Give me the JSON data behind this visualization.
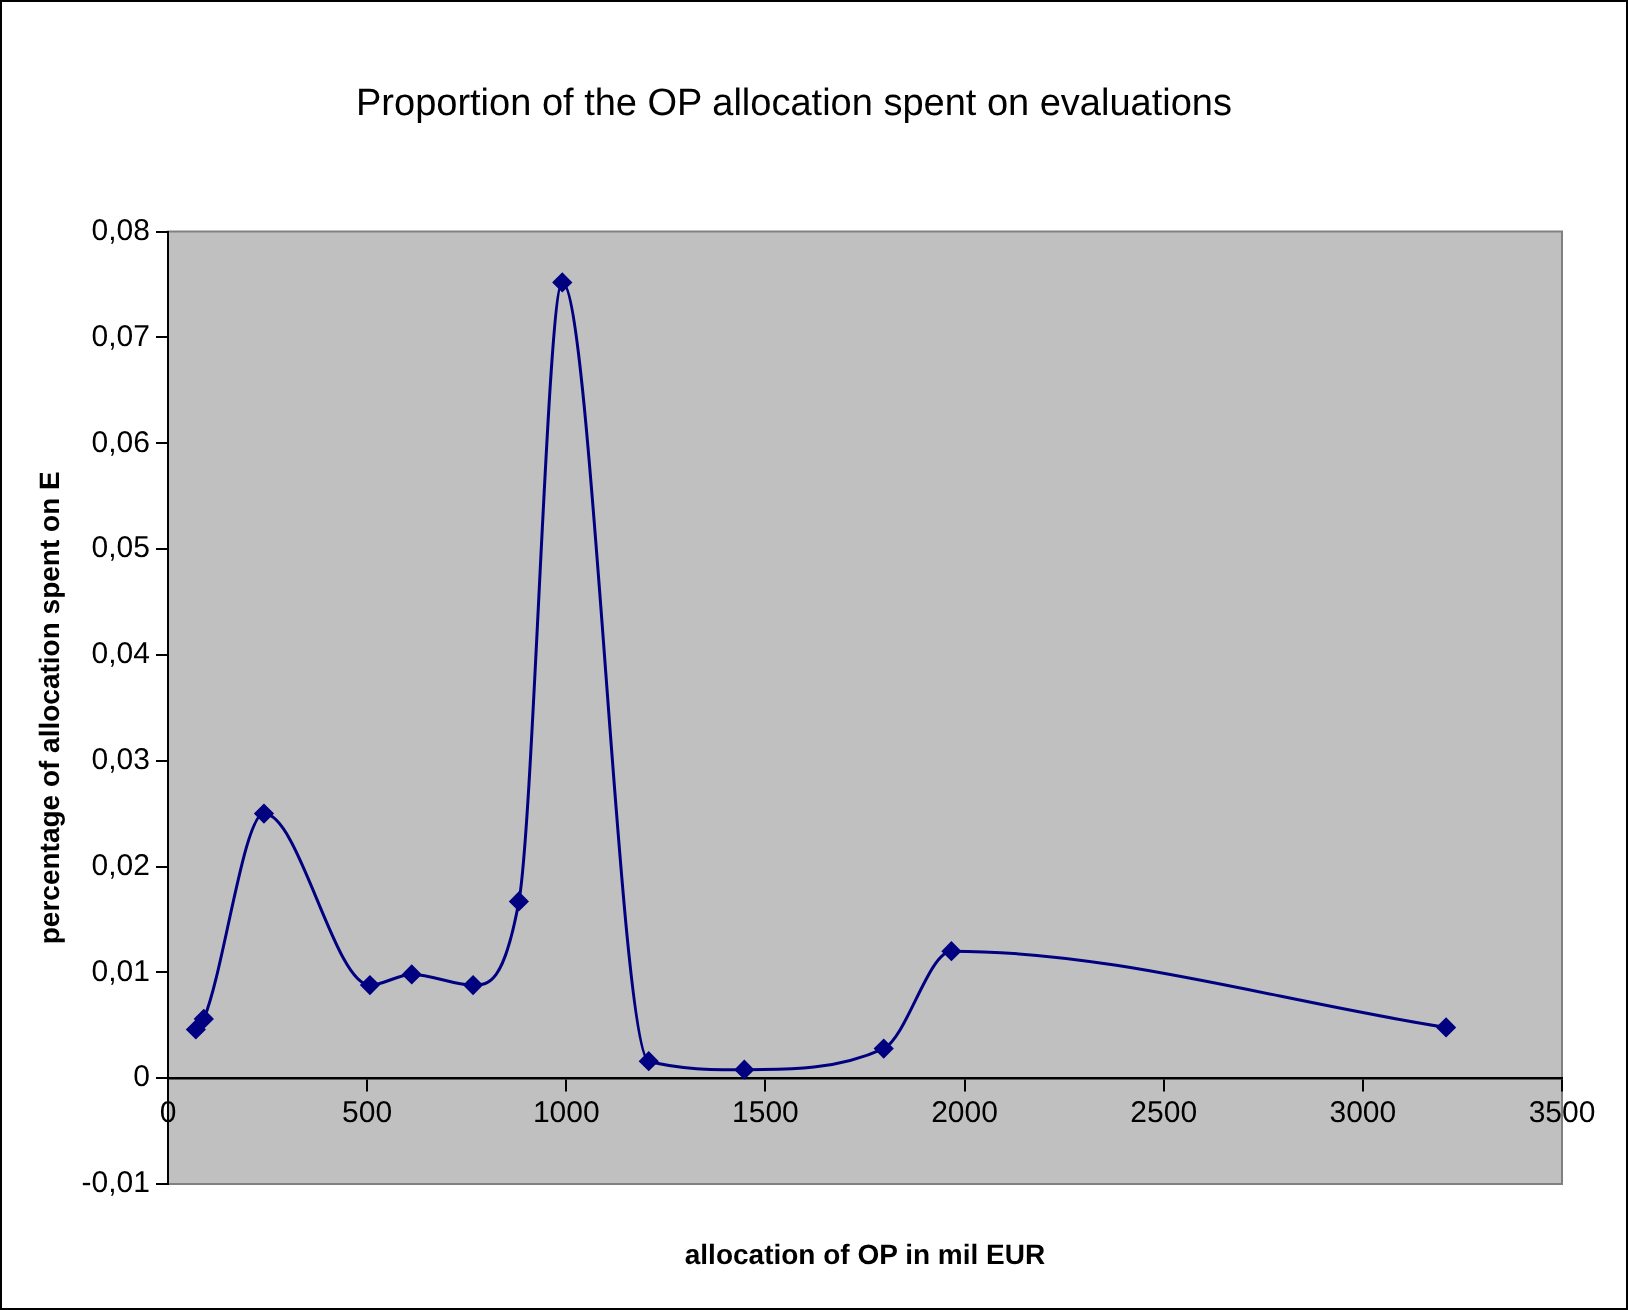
{
  "chart_data": {
    "type": "line",
    "title": "Proportion of the OP allocation spent on evaluations",
    "xlabel": "allocation of OP in mil EUR",
    "ylabel": "percentage of allocation spent on E",
    "x": [
      70,
      90,
      241,
      507,
      612,
      766,
      881,
      990,
      1207,
      1447,
      1797,
      1967,
      3209
    ],
    "series": [
      {
        "color": "#000080",
        "values": [
          0.0046,
          0.0056,
          0.025,
          0.0088,
          0.0098,
          0.0088,
          0.0167,
          0.0752,
          0.0016,
          0.0008,
          0.0028,
          0.012,
          0.0048
        ]
      }
    ],
    "xlim": [
      0,
      3500
    ],
    "xticks": [
      0,
      500,
      1000,
      1500,
      2000,
      2500,
      3000,
      3500
    ],
    "ylim": [
      -0.01,
      0.08
    ],
    "yticks": [
      {
        "value": -0.01,
        "label": "-0,01"
      },
      {
        "value": 0,
        "label": "0"
      },
      {
        "value": 0.01,
        "label": "0,01"
      },
      {
        "value": 0.02,
        "label": "0,02"
      },
      {
        "value": 0.03,
        "label": "0,03"
      },
      {
        "value": 0.04,
        "label": "0,04"
      },
      {
        "value": 0.05,
        "label": "0,05"
      },
      {
        "value": 0.06,
        "label": "0,06"
      },
      {
        "value": 0.07,
        "label": "0,07"
      },
      {
        "value": 0.08,
        "label": "0,08"
      }
    ],
    "grid": false,
    "legend": false,
    "marker": "diamond",
    "line_style": "solid"
  }
}
